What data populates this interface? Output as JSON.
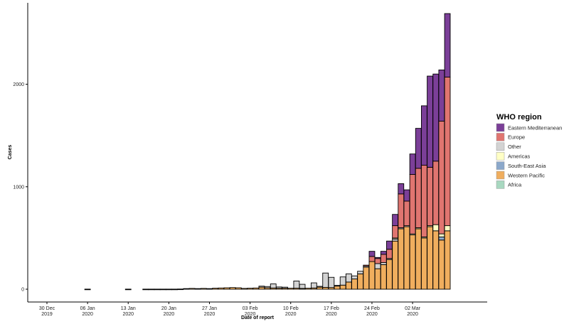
{
  "chart_data": {
    "type": "bar",
    "stacked": true,
    "xlabel": "Date of report",
    "ylabel": "Cases",
    "ylim": [
      0,
      2750
    ],
    "y_ticks": [
      0,
      1000,
      2000
    ],
    "y_tick_labels": [
      "0",
      "1000",
      "2000"
    ],
    "x_start": "2019-12-30",
    "x_ticks": [
      {
        "date": "2019-12-30",
        "label": [
          "30 Dec",
          "2019"
        ]
      },
      {
        "date": "2020-01-06",
        "label": [
          "06 Jan",
          "2020"
        ]
      },
      {
        "date": "2020-01-13",
        "label": [
          "13 Jan",
          "2020"
        ]
      },
      {
        "date": "2020-01-20",
        "label": [
          "20 Jan",
          "2020"
        ]
      },
      {
        "date": "2020-01-27",
        "label": [
          "27 Jan",
          "2020"
        ]
      },
      {
        "date": "2020-02-03",
        "label": [
          "03 Feb",
          "2020"
        ]
      },
      {
        "date": "2020-02-10",
        "label": [
          "10 Feb",
          "2020"
        ]
      },
      {
        "date": "2020-02-17",
        "label": [
          "17 Feb",
          "2020"
        ]
      },
      {
        "date": "2020-02-24",
        "label": [
          "24 Feb",
          "2020"
        ]
      },
      {
        "date": "2020-03-02",
        "label": [
          "02 Mar",
          "2020"
        ]
      }
    ],
    "legend_title": "WHO region",
    "legend_position": "right",
    "grid": false,
    "series": [
      {
        "name": "Eastern Mediterranean",
        "color": "#7b3f98"
      },
      {
        "name": "Europe",
        "color": "#e07570"
      },
      {
        "name": "Other",
        "color": "#d3d3d3"
      },
      {
        "name": "Americas",
        "color": "#ffffc5"
      },
      {
        "name": "South-East Asia",
        "color": "#8ba8cb"
      },
      {
        "name": "Western Pacific",
        "color": "#f0ae5e"
      },
      {
        "name": "Africa",
        "color": "#a8d8c0"
      }
    ],
    "stack_order": [
      "Western Pacific",
      "South-East Asia",
      "Other",
      "Americas",
      "Africa",
      "Europe",
      "Eastern Mediterranean"
    ],
    "data": [
      {
        "date": "2020-01-06",
        "Western Pacific": 1
      },
      {
        "date": "2020-01-13",
        "Western Pacific": 1
      },
      {
        "date": "2020-01-16",
        "Western Pacific": 1
      },
      {
        "date": "2020-01-17",
        "Western Pacific": 1
      },
      {
        "date": "2020-01-18",
        "Western Pacific": 1
      },
      {
        "date": "2020-01-19",
        "Western Pacific": 1
      },
      {
        "date": "2020-01-20",
        "Western Pacific": 1
      },
      {
        "date": "2020-01-21",
        "Western Pacific": 1
      },
      {
        "date": "2020-01-22",
        "Western Pacific": 2
      },
      {
        "date": "2020-01-23",
        "Western Pacific": 6
      },
      {
        "date": "2020-01-24",
        "Western Pacific": 8
      },
      {
        "date": "2020-01-25",
        "Western Pacific": 6
      },
      {
        "date": "2020-01-26",
        "Western Pacific": 8
      },
      {
        "date": "2020-01-27",
        "Western Pacific": 6
      },
      {
        "date": "2020-01-28",
        "Western Pacific": 10
      },
      {
        "date": "2020-01-29",
        "Western Pacific": 12
      },
      {
        "date": "2020-01-30",
        "Western Pacific": 14
      },
      {
        "date": "2020-01-31",
        "Western Pacific": 16
      },
      {
        "date": "2020-02-01",
        "Western Pacific": 14
      },
      {
        "date": "2020-02-02",
        "Western Pacific": 8
      },
      {
        "date": "2020-02-03",
        "Western Pacific": 10
      },
      {
        "date": "2020-02-04",
        "Western Pacific": 12
      },
      {
        "date": "2020-02-05",
        "Western Pacific": 20,
        "Other": 10
      },
      {
        "date": "2020-02-06",
        "Western Pacific": 14,
        "Other": 12
      },
      {
        "date": "2020-02-07",
        "Western Pacific": 12,
        "Other": 40
      },
      {
        "date": "2020-02-08",
        "Western Pacific": 10,
        "Other": 12
      },
      {
        "date": "2020-02-09",
        "Western Pacific": 10,
        "Other": 10
      },
      {
        "date": "2020-02-10",
        "Western Pacific": 10
      },
      {
        "date": "2020-02-11",
        "Western Pacific": 10,
        "Other": 70
      },
      {
        "date": "2020-02-12",
        "Western Pacific": 8,
        "Other": 40
      },
      {
        "date": "2020-02-13",
        "Western Pacific": 10
      },
      {
        "date": "2020-02-14",
        "Western Pacific": 12,
        "Other": 50
      },
      {
        "date": "2020-02-15",
        "Western Pacific": 20,
        "Other": 8
      },
      {
        "date": "2020-02-16",
        "Western Pacific": 18,
        "Other": 140
      },
      {
        "date": "2020-02-17",
        "Western Pacific": 16,
        "Other": 100
      },
      {
        "date": "2020-02-18",
        "Western Pacific": 30,
        "Other": 8
      },
      {
        "date": "2020-02-19",
        "Western Pacific": 40,
        "Other": 80
      },
      {
        "date": "2020-02-20",
        "Western Pacific": 70,
        "Other": 80
      },
      {
        "date": "2020-02-21",
        "Western Pacific": 100,
        "Other": 30
      },
      {
        "date": "2020-02-22",
        "Western Pacific": 150,
        "Other": 25
      },
      {
        "date": "2020-02-23",
        "Western Pacific": 215,
        "Europe": 10,
        "Other": 10
      },
      {
        "date": "2020-02-24",
        "Western Pacific": 270,
        "Europe": 50,
        "Eastern Mediterranean": 50
      },
      {
        "date": "2020-02-25",
        "Western Pacific": 200,
        "Europe": 50,
        "Other": 50,
        "Eastern Mediterranean": 10
      },
      {
        "date": "2020-02-26",
        "Western Pacific": 240,
        "Europe": 80,
        "Other": 20,
        "Eastern Mediterranean": 30
      },
      {
        "date": "2020-02-27",
        "Western Pacific": 290,
        "Europe": 90,
        "Other": 10,
        "Eastern Mediterranean": 80
      },
      {
        "date": "2020-02-28",
        "Western Pacific": 470,
        "Europe": 120,
        "Other": 20,
        "Americas": 10,
        "Eastern Mediterranean": 110
      },
      {
        "date": "2020-02-29",
        "Western Pacific": 590,
        "Europe": 330,
        "Other": 10,
        "Eastern Mediterranean": 100
      },
      {
        "date": "2020-03-01",
        "Western Pacific": 610,
        "Europe": 240,
        "Other": 10,
        "Eastern Mediterranean": 110
      },
      {
        "date": "2020-03-02",
        "Western Pacific": 530,
        "Europe": 580,
        "Americas": 10,
        "Eastern Mediterranean": 200
      },
      {
        "date": "2020-03-03",
        "Western Pacific": 590,
        "Europe": 580,
        "Americas": 10,
        "Eastern Mediterranean": 390
      },
      {
        "date": "2020-03-04",
        "Western Pacific": 500,
        "Europe": 700,
        "Americas": 10,
        "Eastern Mediterranean": 580
      },
      {
        "date": "2020-03-05",
        "Western Pacific": 610,
        "Europe": 570,
        "Americas": 10,
        "Eastern Mediterranean": 890
      },
      {
        "date": "2020-03-06",
        "Western Pacific": 570,
        "Europe": 620,
        "Americas": 60,
        "Eastern Mediterranean": 850
      },
      {
        "date": "2020-03-07",
        "Western Pacific": 480,
        "South-East Asia": 30,
        "Europe": 1100,
        "Americas": 30,
        "Eastern Mediterranean": 500
      },
      {
        "date": "2020-03-08",
        "Western Pacific": 570,
        "Europe": 1450,
        "Americas": 50,
        "Eastern Mediterranean": 620
      }
    ]
  }
}
